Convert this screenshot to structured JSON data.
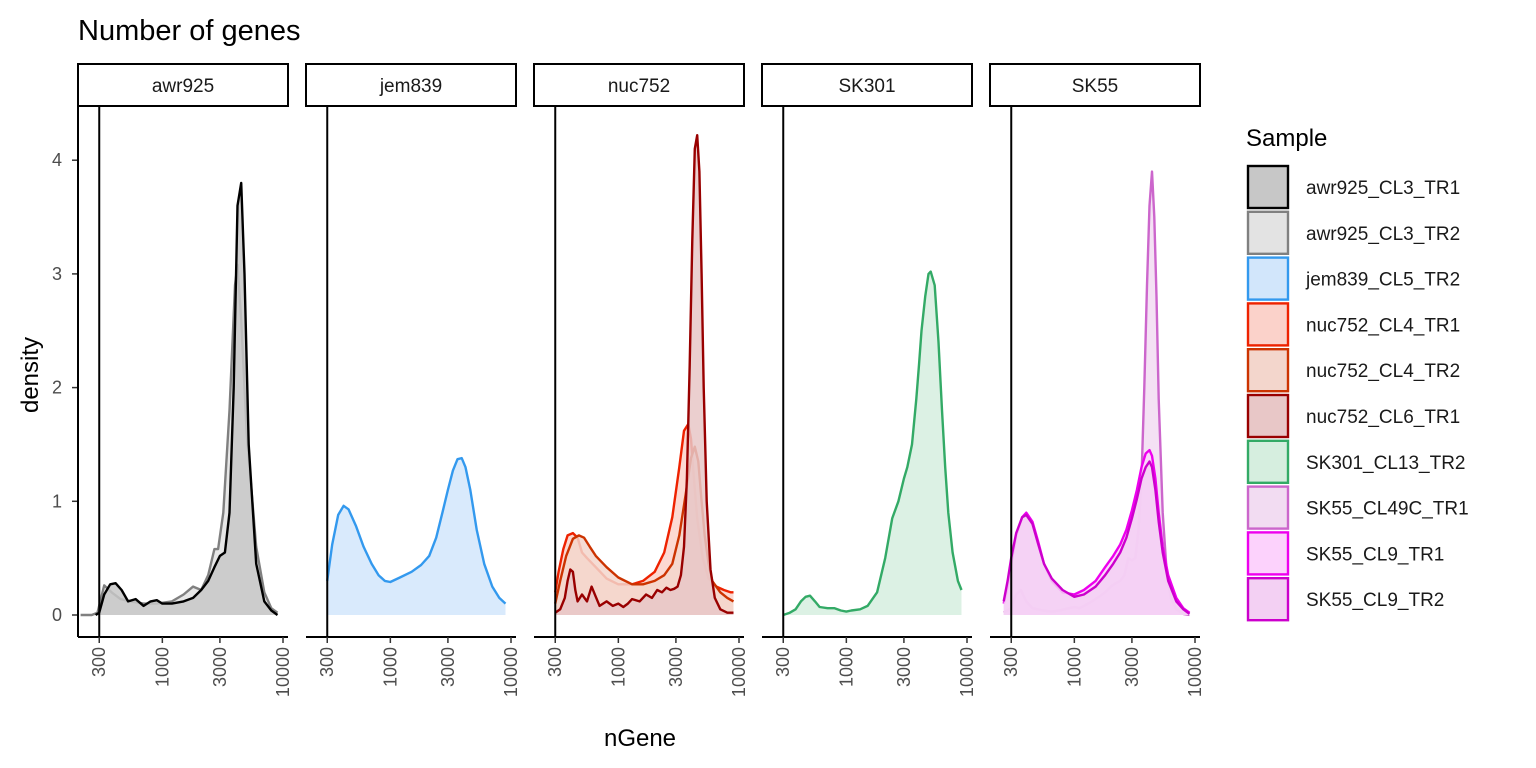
{
  "chart_data": {
    "type": "area",
    "title": "Number of genes",
    "xlabel": "nGene",
    "ylabel": "density",
    "x_scale": "log10",
    "xlim": [
      200,
      11000
    ],
    "ylim": [
      -0.2,
      4.5
    ],
    "x_ticks": [
      300,
      1000,
      3000,
      10000
    ],
    "x_tick_labels": [
      "300",
      "1000",
      "3000",
      "10000"
    ],
    "y_ticks": [
      0,
      1,
      2,
      3,
      4
    ],
    "y_tick_labels": [
      "0",
      "1",
      "2",
      "3",
      "4"
    ],
    "legend_title": "Sample",
    "legend_position": "right",
    "panels": [
      {
        "label": "awr925",
        "series": [
          {
            "name": "awr925_CL3_TR2",
            "line": "#808080",
            "fill": "#e3e3e3",
            "x": [
              210,
              260,
              290,
              330,
              380,
              450,
              550,
              700,
              900,
              1200,
              1500,
              1800,
              2100,
              2400,
              2700,
              2900,
              3200,
              3600,
              4000,
              4200,
              4500,
              5000,
              6000,
              7000,
              8000,
              9000
            ],
            "y": [
              0,
              0,
              0.02,
              0.26,
              0.2,
              0.14,
              0.12,
              0.1,
              0.1,
              0.12,
              0.18,
              0.25,
              0.22,
              0.35,
              0.58,
              0.58,
              0.9,
              1.8,
              2.9,
              3.08,
              2.6,
              1.6,
              0.6,
              0.2,
              0.06,
              0.02
            ]
          },
          {
            "name": "awr925_CL3_TR1",
            "line": "#000000",
            "fill": "#c7c7c7",
            "x": [
              280,
              300,
              330,
              370,
              410,
              460,
              520,
              600,
              700,
              800,
              900,
              1000,
              1200,
              1500,
              1800,
              2100,
              2400,
              2700,
              3000,
              3300,
              3600,
              3900,
              4200,
              4500,
              4800,
              5200,
              6000,
              7000,
              8000,
              9000
            ],
            "y": [
              0,
              0.02,
              0.18,
              0.27,
              0.28,
              0.22,
              0.12,
              0.14,
              0.08,
              0.12,
              0.13,
              0.1,
              0.1,
              0.12,
              0.15,
              0.22,
              0.3,
              0.42,
              0.52,
              0.55,
              0.9,
              2.0,
              3.6,
              3.8,
              3.0,
              1.5,
              0.45,
              0.12,
              0.04,
              0
            ]
          }
        ]
      },
      {
        "label": "jem839",
        "series": [
          {
            "name": "jem839_CL5_TR2",
            "line": "#3399ee",
            "fill": "#d2e6fb",
            "x": [
              300,
              330,
              370,
              410,
              450,
              520,
              600,
              700,
              800,
              900,
              1000,
              1200,
              1500,
              1800,
              2100,
              2400,
              2700,
              3000,
              3300,
              3600,
              3900,
              4200,
              4600,
              5200,
              6000,
              7000,
              8000,
              9000
            ],
            "y": [
              0.3,
              0.62,
              0.88,
              0.96,
              0.93,
              0.78,
              0.6,
              0.45,
              0.35,
              0.3,
              0.29,
              0.33,
              0.38,
              0.44,
              0.52,
              0.68,
              0.9,
              1.1,
              1.27,
              1.37,
              1.38,
              1.3,
              1.1,
              0.75,
              0.45,
              0.25,
              0.15,
              0.1
            ]
          }
        ]
      },
      {
        "label": "nuc752",
        "series": [
          {
            "name": "nuc752_CL4_TR1",
            "line": "#ee2200",
            "fill": "#fbd2ca",
            "x": [
              300,
              320,
              350,
              380,
              420,
              460,
              500,
              550,
              650,
              800,
              1000,
              1300,
              1600,
              2000,
              2400,
              2800,
              3200,
              3500,
              3800,
              4000,
              4200,
              4500,
              5000,
              5600,
              6500,
              7500,
              8500,
              9000
            ],
            "y": [
              0.2,
              0.38,
              0.58,
              0.7,
              0.72,
              0.68,
              0.55,
              0.5,
              0.42,
              0.32,
              0.27,
              0.27,
              0.3,
              0.38,
              0.55,
              0.86,
              1.3,
              1.62,
              1.68,
              1.55,
              1.25,
              0.85,
              0.5,
              0.32,
              0.25,
              0.22,
              0.2,
              0.2
            ]
          },
          {
            "name": "nuc752_CL4_TR2",
            "line": "#cc3300",
            "fill": "#f3d6cc",
            "x": [
              300,
              330,
              370,
              420,
              470,
              520,
              580,
              650,
              800,
              1000,
              1300,
              1600,
              2000,
              2400,
              2800,
              3200,
              3600,
              4000,
              4300,
              4600,
              4900,
              5200,
              5600,
              6000,
              7000,
              8000,
              9000
            ],
            "y": [
              0.1,
              0.3,
              0.52,
              0.67,
              0.7,
              0.68,
              0.6,
              0.52,
              0.42,
              0.33,
              0.27,
              0.27,
              0.3,
              0.35,
              0.45,
              0.7,
              1.05,
              1.38,
              1.48,
              1.35,
              1.0,
              0.7,
              0.45,
              0.3,
              0.2,
              0.15,
              0.12
            ]
          },
          {
            "name": "nuc752_CL6_TR1",
            "line": "#990000",
            "fill": "#e8c7c7",
            "x": [
              300,
              330,
              360,
              380,
              400,
              420,
              440,
              460,
              500,
              550,
              600,
              650,
              700,
              800,
              900,
              1000,
              1100,
              1200,
              1300,
              1500,
              1700,
              1900,
              2100,
              2300,
              2500,
              2700,
              2900,
              3100,
              3300,
              3500,
              3700,
              3900,
              4100,
              4300,
              4500,
              4700,
              4900,
              5100,
              5400,
              5800,
              6300,
              7000,
              8000,
              9000
            ],
            "y": [
              0.02,
              0.05,
              0.15,
              0.3,
              0.4,
              0.38,
              0.22,
              0.12,
              0.18,
              0.12,
              0.25,
              0.16,
              0.08,
              0.12,
              0.08,
              0.1,
              0.07,
              0.1,
              0.14,
              0.12,
              0.18,
              0.15,
              0.22,
              0.2,
              0.24,
              0.22,
              0.23,
              0.25,
              0.35,
              0.6,
              1.2,
              2.2,
              3.3,
              4.1,
              4.22,
              3.9,
              3.0,
              2.0,
              1.0,
              0.4,
              0.15,
              0.05,
              0.02,
              0.02
            ]
          }
        ]
      },
      {
        "label": "SK301",
        "series": [
          {
            "name": "SK301_CL13_TR2",
            "line": "#33aa66",
            "fill": "#d6eedf",
            "x": [
              300,
              340,
              380,
              420,
              460,
              500,
              550,
              600,
              700,
              800,
              900,
              1000,
              1100,
              1300,
              1500,
              1800,
              2100,
              2400,
              2700,
              3000,
              3200,
              3500,
              3800,
              4000,
              4200,
              4500,
              4800,
              5000,
              5400,
              5800,
              6200,
              6600,
              7000,
              7600,
              8400,
              9000
            ],
            "y": [
              0,
              0.02,
              0.05,
              0.12,
              0.16,
              0.17,
              0.12,
              0.07,
              0.06,
              0.06,
              0.04,
              0.03,
              0.04,
              0.05,
              0.08,
              0.2,
              0.5,
              0.85,
              1.0,
              1.2,
              1.3,
              1.5,
              1.9,
              2.2,
              2.5,
              2.8,
              3.0,
              3.02,
              2.9,
              2.4,
              1.8,
              1.3,
              0.9,
              0.55,
              0.3,
              0.22
            ]
          }
        ]
      },
      {
        "label": "SK55",
        "series": [
          {
            "name": "SK55_CL49C_TR1",
            "line": "#cc66cc",
            "fill": "#f2dcf2",
            "x": [
              260,
              300,
              330,
              360,
              400,
              450,
              500,
              550,
              650,
              750,
              900,
              1000,
              1100,
              1200,
              1400,
              1600,
              1800,
              2000,
              2200,
              2400,
              2600,
              2800,
              3000,
              3200,
              3400,
              3600,
              3800,
              4000,
              4200,
              4400,
              4600,
              4800,
              5000,
              5400,
              5800,
              6300,
              7000,
              8000,
              9000
            ],
            "y": [
              0.02,
              0.06,
              0.18,
              0.22,
              0.12,
              0.06,
              0.05,
              0.04,
              0.03,
              0.04,
              0.06,
              0.07,
              0.06,
              0.08,
              0.12,
              0.16,
              0.2,
              0.25,
              0.28,
              0.3,
              0.35,
              0.5,
              0.48,
              0.5,
              0.75,
              1.2,
              2.0,
              2.9,
              3.6,
              3.9,
              3.5,
              2.8,
              1.9,
              0.9,
              0.4,
              0.15,
              0.05,
              0.01,
              0
            ]
          },
          {
            "name": "SK55_CL9_TR1",
            "line": "#ee00ee",
            "fill": "#fcd2fc",
            "x": [
              260,
              280,
              300,
              330,
              370,
              400,
              450,
              500,
              560,
              650,
              800,
              1000,
              1200,
              1500,
              1800,
              2100,
              2400,
              2700,
              3000,
              3300,
              3600,
              3900,
              4200,
              4400,
              4700,
              5000,
              5400,
              6000,
              7000,
              8000,
              9000
            ],
            "y": [
              0.1,
              0.25,
              0.45,
              0.7,
              0.86,
              0.9,
              0.82,
              0.65,
              0.45,
              0.3,
              0.2,
              0.18,
              0.22,
              0.3,
              0.42,
              0.52,
              0.62,
              0.75,
              0.92,
              1.1,
              1.3,
              1.42,
              1.45,
              1.4,
              1.2,
              0.9,
              0.6,
              0.35,
              0.15,
              0.06,
              0.02
            ]
          },
          {
            "name": "SK55_CL9_TR2",
            "line": "#cc00cc",
            "fill": "#f3d0f3",
            "x": [
              260,
              280,
              300,
              330,
              370,
              400,
              450,
              500,
              560,
              650,
              800,
              1000,
              1200,
              1500,
              1800,
              2100,
              2400,
              2700,
              3000,
              3300,
              3600,
              3900,
              4200,
              4400,
              4700,
              5000,
              5400,
              6000,
              7000,
              8000,
              9000
            ],
            "y": [
              0.12,
              0.3,
              0.5,
              0.72,
              0.86,
              0.88,
              0.8,
              0.63,
              0.45,
              0.32,
              0.22,
              0.16,
              0.18,
              0.25,
              0.35,
              0.45,
              0.55,
              0.68,
              0.85,
              1.02,
              1.2,
              1.3,
              1.35,
              1.3,
              1.1,
              0.82,
              0.55,
              0.3,
              0.12,
              0.05,
              0.01
            ]
          }
        ]
      }
    ],
    "legend": [
      {
        "name": "awr925_CL3_TR1",
        "line": "#000000",
        "fill": "#c7c7c7"
      },
      {
        "name": "awr925_CL3_TR2",
        "line": "#808080",
        "fill": "#e3e3e3"
      },
      {
        "name": "jem839_CL5_TR2",
        "line": "#3399ee",
        "fill": "#d2e6fb"
      },
      {
        "name": "nuc752_CL4_TR1",
        "line": "#ee2200",
        "fill": "#fbd2ca"
      },
      {
        "name": "nuc752_CL4_TR2",
        "line": "#cc3300",
        "fill": "#f3d6cc"
      },
      {
        "name": "nuc752_CL6_TR1",
        "line": "#990000",
        "fill": "#e8c7c7"
      },
      {
        "name": "SK301_CL13_TR2",
        "line": "#33aa66",
        "fill": "#d6eedf"
      },
      {
        "name": "SK55_CL49C_TR1",
        "line": "#cc66cc",
        "fill": "#f2dcf2"
      },
      {
        "name": "SK55_CL9_TR1",
        "line": "#ee00ee",
        "fill": "#fcd2fc"
      },
      {
        "name": "SK55_CL9_TR2",
        "line": "#cc00cc",
        "fill": "#f3d0f3"
      }
    ]
  }
}
